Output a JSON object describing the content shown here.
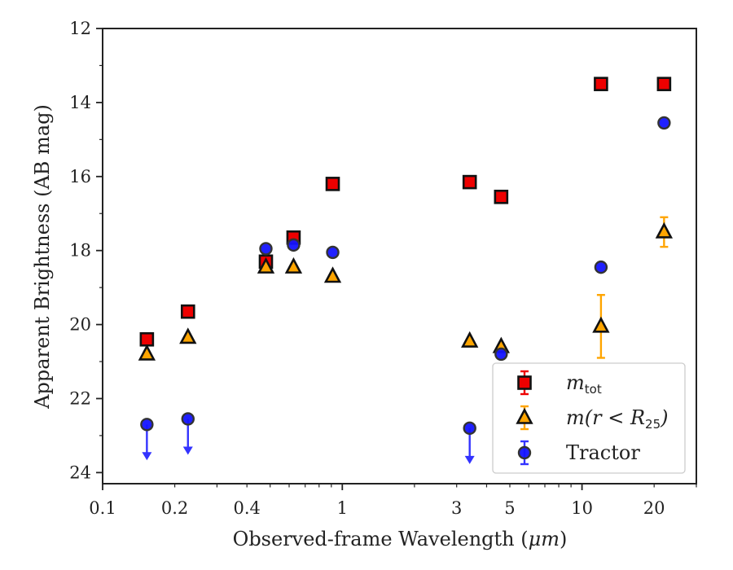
{
  "chart_data": {
    "type": "scatter",
    "xlabel_prefix": "Observed-frame Wavelength (",
    "xlabel_unit": "μm",
    "xlabel_suffix": ")",
    "ylabel": "Apparent Brightness (AB mag)",
    "x_scale": "log",
    "xlim": [
      0.1,
      30
    ],
    "ylim": [
      24.3,
      12
    ],
    "y_inverted": true,
    "grid": false,
    "legend_position": "lower-right",
    "x_ticks": [
      {
        "value": 0.1,
        "label": "0.1"
      },
      {
        "value": 0.2,
        "label": "0.2"
      },
      {
        "value": 0.4,
        "label": "0.4"
      },
      {
        "value": 1,
        "label": "1"
      },
      {
        "value": 3,
        "label": "3"
      },
      {
        "value": 5,
        "label": "5"
      },
      {
        "value": 10,
        "label": "10"
      },
      {
        "value": 20,
        "label": "20"
      }
    ],
    "y_ticks": [
      {
        "value": 12,
        "label": "12"
      },
      {
        "value": 14,
        "label": "14"
      },
      {
        "value": 16,
        "label": "16"
      },
      {
        "value": 18,
        "label": "18"
      },
      {
        "value": 20,
        "label": "20"
      },
      {
        "value": 22,
        "label": "22"
      },
      {
        "value": 24,
        "label": "24"
      }
    ],
    "series": [
      {
        "id": "mtot",
        "legend_main": "m",
        "legend_sub": "tot",
        "marker": "square",
        "face_color": "#ee0000",
        "edge_color": "#111111",
        "error_color": "#ee0000",
        "points": [
          {
            "x": 0.153,
            "y": 20.4,
            "err": 0
          },
          {
            "x": 0.227,
            "y": 19.65,
            "err": 0
          },
          {
            "x": 0.48,
            "y": 18.3,
            "err": 0
          },
          {
            "x": 0.626,
            "y": 17.65,
            "err": 0
          },
          {
            "x": 0.912,
            "y": 16.2,
            "err": 0
          },
          {
            "x": 3.4,
            "y": 16.15,
            "err": 0
          },
          {
            "x": 4.6,
            "y": 16.55,
            "err": 0
          },
          {
            "x": 12.0,
            "y": 13.5,
            "err": 0
          },
          {
            "x": 22.0,
            "y": 13.5,
            "err": 0
          }
        ]
      },
      {
        "id": "mr25",
        "legend_main": "m(r < R",
        "legend_sub": "25",
        "legend_close": ")",
        "marker": "triangle",
        "face_color": "#ffa500",
        "edge_color": "#111111",
        "error_color": "#ffa500",
        "points": [
          {
            "x": 0.153,
            "y": 20.8,
            "err": 0
          },
          {
            "x": 0.227,
            "y": 20.35,
            "err": 0
          },
          {
            "x": 0.48,
            "y": 18.45,
            "err": 0
          },
          {
            "x": 0.626,
            "y": 18.45,
            "err": 0
          },
          {
            "x": 0.912,
            "y": 18.7,
            "err": 0
          },
          {
            "x": 3.4,
            "y": 20.45,
            "err": 0
          },
          {
            "x": 4.6,
            "y": 20.6,
            "err": 0
          },
          {
            "x": 12.0,
            "y": 20.05,
            "err": 0.85
          },
          {
            "x": 22.0,
            "y": 17.5,
            "err": 0.4
          }
        ]
      },
      {
        "id": "tractor",
        "legend_main": "Tractor",
        "marker": "circle",
        "face_color": "#1414ff",
        "edge_color": "#333333",
        "error_color": "#3333ff",
        "points": [
          {
            "x": 0.153,
            "y": 22.7,
            "err": 0,
            "upper_limit": true
          },
          {
            "x": 0.227,
            "y": 22.55,
            "err": 0,
            "upper_limit": true
          },
          {
            "x": 0.48,
            "y": 17.95,
            "err": 0
          },
          {
            "x": 0.626,
            "y": 17.85,
            "err": 0
          },
          {
            "x": 0.912,
            "y": 18.05,
            "err": 0
          },
          {
            "x": 3.4,
            "y": 22.8,
            "err": 0,
            "upper_limit": true
          },
          {
            "x": 4.6,
            "y": 20.8,
            "err": 0
          },
          {
            "x": 12.0,
            "y": 18.45,
            "err": 0
          },
          {
            "x": 22.0,
            "y": 14.55,
            "err": 0
          }
        ]
      }
    ]
  }
}
